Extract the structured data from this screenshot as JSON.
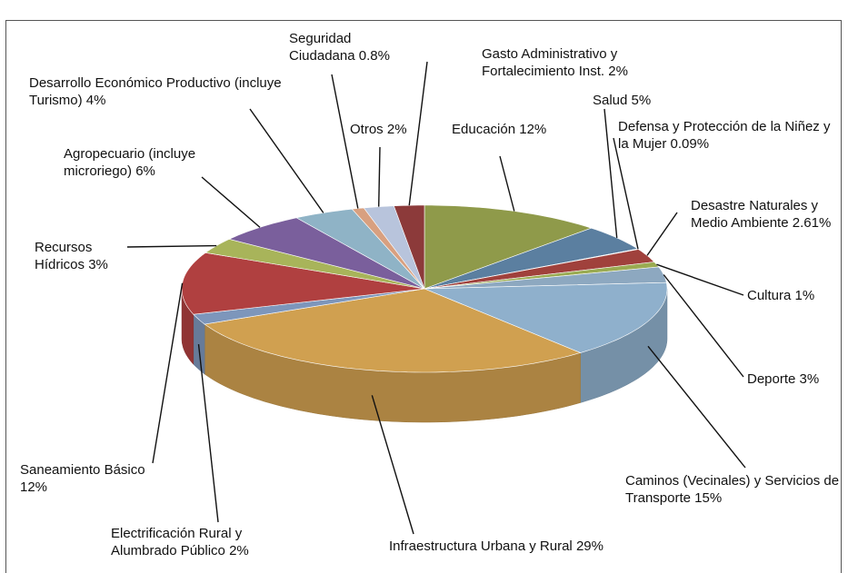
{
  "chart_data": {
    "type": "pie3d",
    "categories": [
      "Educación",
      "Salud",
      "Defensa y Protección de la Niñez y la Mujer",
      "Desastre Naturales y Medio Ambiente",
      "Cultura",
      "Deporte",
      "Caminos (Vecinales) y Servicios de Transporte",
      "Infraestructura Urbana y Rural",
      "Electrificación Rural y Alumbrado Público",
      "Saneamiento Básico",
      "Recursos Hídricos",
      "Agropecuario (incluye microriego)",
      "Desarrollo Económico Productivo (incluye Turismo)",
      "Seguridad Ciudadana",
      "Otros",
      "Gasto Administrativo y Fortalecimiento Inst."
    ],
    "values": [
      12,
      5,
      0.09,
      2.61,
      1,
      3,
      15,
      29,
      2,
      12,
      3,
      6,
      4,
      0.8,
      2,
      2
    ],
    "value_labels": [
      "12%",
      "5%",
      "0.09%",
      "2.61%",
      "1%",
      "3%",
      "15%",
      "29%",
      "2%",
      "12%",
      "3%",
      "6%",
      "4%",
      "0.8%",
      "2%",
      "2%"
    ],
    "colors": [
      "#8f9a4a",
      "#5b7fa0",
      "#9bb0c8",
      "#a0413c",
      "#9aab52",
      "#8da8c0",
      "#8fb0cc",
      "#d0a050",
      "#7d96bb",
      "#b04040",
      "#a8b45a",
      "#7a5f9c",
      "#8fb3c6",
      "#d8a080",
      "#b8c4dc",
      "#8c3a3a"
    ]
  }
}
